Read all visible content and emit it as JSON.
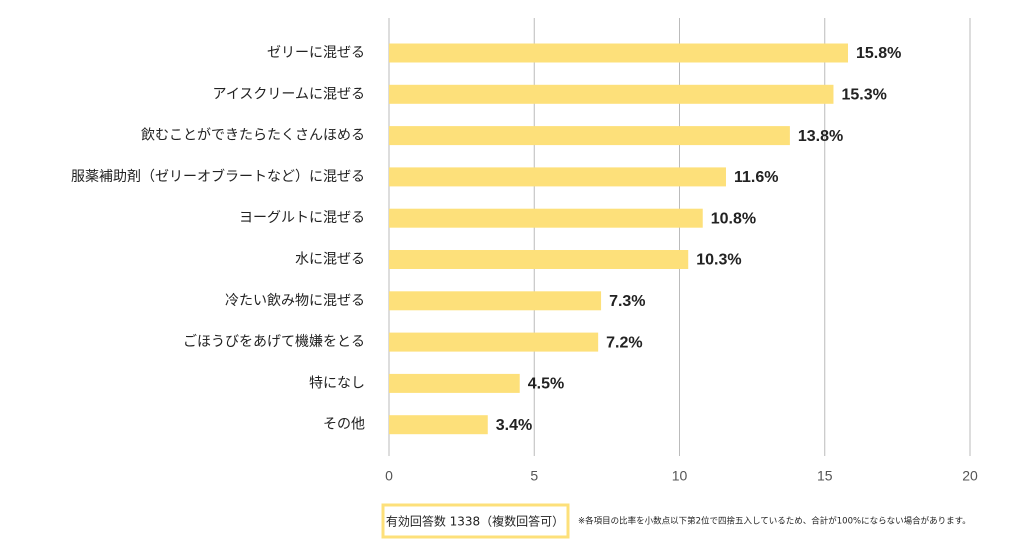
{
  "chart_data": {
    "type": "bar",
    "orientation": "horizontal",
    "categories": [
      "ゼリーに混ぜる",
      "アイスクリームに混ぜる",
      "飲むことができたらたくさんほめる",
      "服薬補助剤（ゼリーオブラートなど）に混ぜる",
      "ヨーグルトに混ぜる",
      "水に混ぜる",
      "冷たい飲み物に混ぜる",
      "ごほうびをあげて機嫌をとる",
      "特になし",
      "その他"
    ],
    "values": [
      15.8,
      15.3,
      13.8,
      11.6,
      10.8,
      10.3,
      7.3,
      7.2,
      4.5,
      3.4
    ],
    "value_labels": [
      "15.8%",
      "15.3%",
      "13.8%",
      "11.6%",
      "10.8%",
      "10.3%",
      "7.3%",
      "7.2%",
      "4.5%",
      "3.4%"
    ],
    "color": "#fde07a",
    "xlim": [
      0,
      20
    ],
    "xticks": [
      0,
      5,
      10,
      15,
      20
    ],
    "grid": true,
    "response_count": "有効回答数 1338（複数回答可）",
    "note": "※各項目の比率を小数点以下第2位で四捨五入しているため、合計が100%にならない場合があります。"
  }
}
